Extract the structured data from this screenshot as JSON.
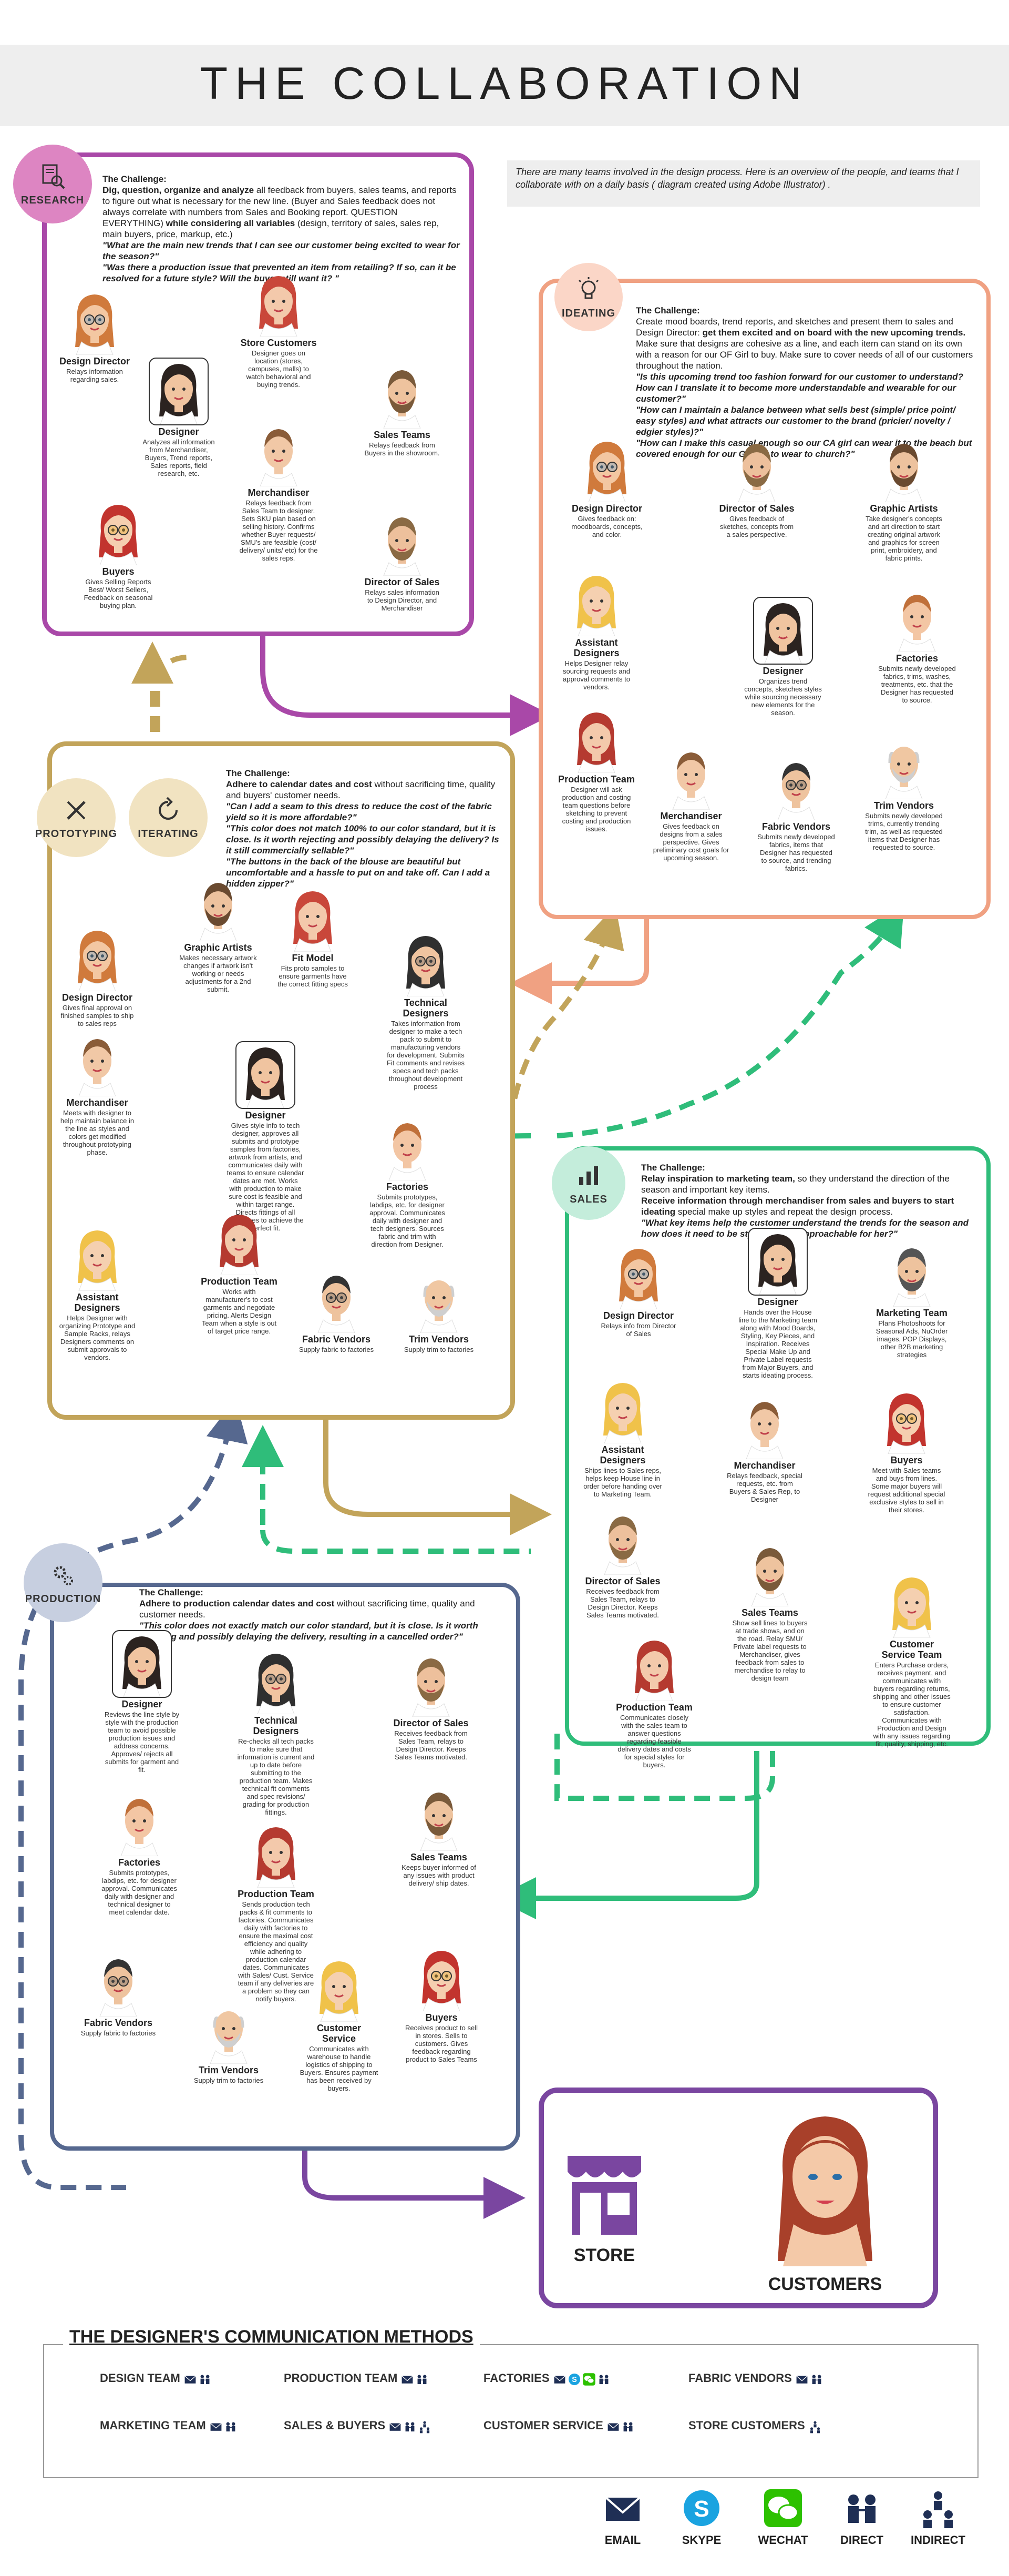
{
  "title": "THE COLLABORATION",
  "intro": "There are many teams involved in the design process. Here is an overview of the people, and teams that I collaborate with on a daily basis ( diagram created using Adobe Illustrator) .",
  "colors": {
    "research": "#a948a8",
    "ideating": "#f0a182",
    "prototyping": "#c2a45a",
    "sales": "#2fbd7a",
    "production": "#56688f",
    "destination": "#7a46a0"
  },
  "research": {
    "badge": "RESEARCH",
    "challenge_label": "The Challenge:",
    "challenge_lead": "Dig, question, organize and analyze",
    "challenge_text": " all feedback from buyers, sales teams, and reports to figure out what is necessary for the new line. (Buyer and Sales feedback does not always correlate with numbers from Sales and Booking report. QUESTION EVERYTHING) ",
    "challenge_tail": "while considering all variables",
    "challenge_text2": " (design, territory of sales, sales rep, main buyers, price, markup, etc.)",
    "q1": "\"What are the main new trends that I can see our customer being excited to wear for the season?\"",
    "q2": "\"Was there a production issue that prevented an item from retailing? If so, can it be resolved for a future style? Will the buyer still want it? \"",
    "people": [
      {
        "name": "Design Director",
        "desc": "Relays information regarding sales."
      },
      {
        "name": "Store Customers",
        "desc": "Designer goes on location (stores, campuses, malls) to watch behavioral and buying trends."
      },
      {
        "name": "Designer",
        "desc": "Analyzes all information from Merchandiser, Buyers, Trend reports, Sales reports, field research, etc."
      },
      {
        "name": "Sales Teams",
        "desc": "Relays feedback from Buyers in the showroom."
      },
      {
        "name": "Merchandiser",
        "desc": "Relays feedback from Sales Team to designer. Sets SKU plan based on selling history. Confirms whether Buyer requests/ SMU's are feasible (cost/ delivery/ units/ etc) for the sales reps."
      },
      {
        "name": "Buyers",
        "desc": "Gives Selling Reports Best/ Worst Sellers, Feedback on seasonal buying plan."
      },
      {
        "name": "Director of Sales",
        "desc": "Relays sales information to Design Director, and Merchandiser"
      }
    ]
  },
  "ideating": {
    "badge": "IDEATING",
    "challenge_label": "The Challenge:",
    "challenge_text": "Create mood boards, trend reports, and sketches and present them to sales and Design Director: ",
    "challenge_lead": "get them excited and on board with the new upcoming trends.",
    "challenge_text2": "Make sure that designs are cohesive as a line, and each item can stand on its own with a reason for our OF Girl to buy. Make sure to cover needs of all of our customers throughout the nation.",
    "q1": "\"Is this upcoming trend too fashion forward for our customer to understand? How can I translate it to become more understandable and wearable for our customer?\"",
    "q2": "\"How can I maintain a balance between what sells best (simple/ price point/ easy styles) and what attracts our customer to the brand (pricier/ novelty / edgier styles)?\"",
    "q3": "\"How can I make this casual enough so our CA girl can wear it to the beach but covered enough for our GA girl to wear to church?\"",
    "people": [
      {
        "name": "Design Director",
        "desc": "Gives feedback on: moodboards, concepts, and color."
      },
      {
        "name": "Director of Sales",
        "desc": "Gives feedback of sketches, concepts from a sales perspective."
      },
      {
        "name": "Graphic Artists",
        "desc": "Take designer's concepts and art direction to start creating original artwork and graphics for screen print, embroidery, and fabric prints."
      },
      {
        "name": "Assistant Designers",
        "desc": "Helps Designer relay sourcing requests and approval comments to vendors."
      },
      {
        "name": "Designer",
        "desc": "Organizes trend concepts, sketches styles while sourcing necessary new elements for the season."
      },
      {
        "name": "Factories",
        "desc": "Submits newly developed fabrics, trims, washes, treatments, etc. that the Designer has requested to source."
      },
      {
        "name": "Production Team",
        "desc": "Designer will ask production and costing team questions before sketching to prevent costing and production issues."
      },
      {
        "name": "Merchandiser",
        "desc": "Gives feedback on designs from a sales perspective. Gives preliminary cost goals for upcoming season."
      },
      {
        "name": "Fabric Vendors",
        "desc": "Submits newly developed fabrics, items that Designer has requested to source, and trending fabrics."
      },
      {
        "name": "Trim Vendors",
        "desc": "Submits newly developed trims, currently trending trim, as well as requested items that Designer has requested to source."
      }
    ]
  },
  "prototyping": {
    "badge1": "PROTOTYPING",
    "badge2": "ITERATING",
    "challenge_label": "The Challenge:",
    "challenge_lead": "Adhere to calendar dates and cost",
    "challenge_text": " without sacrificing time, quality and buyers' customer needs.",
    "q1": "\"Can I add a seam to this dress to reduce the cost of the fabric yield so it is more affordable?\"",
    "q2": "\"This color does not match 100% to our color standard, but it is close. Is it worth rejecting and possibly delaying the delivery? Is it still commercially sellable?\"",
    "q3": "\"The buttons in the back of the blouse are beautiful but uncomfortable and a hassle to put on and take off. Can I add a hidden zipper?\"",
    "people": [
      {
        "name": "Graphic Artists",
        "desc": "Makes necessary artwork changes if artwork isn't working or needs adjustments for a 2nd submit."
      },
      {
        "name": "Fit Model",
        "desc": "Fits proto samples to ensure garments have the correct fitting specs"
      },
      {
        "name": "Design Director",
        "desc": "Gives final approval on finished samples to ship to sales reps"
      },
      {
        "name": "Technical Designers",
        "desc": "Takes information from designer to make a tech pack to submit to manufacturing vendors for development. Submits Fit comments and revises specs and tech packs throughout development process"
      },
      {
        "name": "Merchandiser",
        "desc": "Meets with designer to help maintain balance in the line as styles and colors get modified throughout prototyping phase."
      },
      {
        "name": "Designer",
        "desc": "Gives style info to tech designer, approves all submits and prototype samples from factories, artwork from artists, and communicates daily with teams to ensure calendar dates are met. Works with production to make sure cost is feasible and within target range. Directs fittings of all prototypes to achieve the perfect fit."
      },
      {
        "name": "Factories",
        "desc": "Submits prototypes, labdips, etc. for designer approval. Communicates daily with designer and tech designers. Sources fabric and trim with direction from Designer."
      },
      {
        "name": "Assistant Designers",
        "desc": "Helps Designer with organizing Prototype and Sample Racks, relays Designers comments on submit approvals to vendors."
      },
      {
        "name": "Production Team",
        "desc": "Works with manufacturer's to cost garments and negotiate pricing. Alerts Design Team when a style is out of target price range."
      },
      {
        "name": "Fabric Vendors",
        "desc": "Supply fabric to factories"
      },
      {
        "name": "Trim Vendors",
        "desc": "Supply trim to factories"
      }
    ]
  },
  "sales": {
    "badge": "SALES",
    "challenge_label": "The Challenge:",
    "challenge_lead": "Relay inspiration to marketing team,",
    "challenge_text": " so they understand the direction of the season and important key items.",
    "challenge_lead2": "Receive information through merchandiser from sales and buyers to start ideating",
    "challenge_text2": " special make up styles and repeat the design process.",
    "q1": "\"What key items help the customer understand the trends for the season and how does it need to be styled so it is approachable for her?\"",
    "people": [
      {
        "name": "Designer",
        "desc": "Hands over the House line to the Marketing team along with Mood Boards, Styling, Key Pieces, and Inspiration. Receives Special Make Up and Private Label requests from Major Buyers, and starts ideating process."
      },
      {
        "name": "Design Director",
        "desc": "Relays info from Director of Sales"
      },
      {
        "name": "Marketing Team",
        "desc": "Plans Photoshoots for Seasonal Ads, NuOrder images, POP Displays, other B2B marketing strategies"
      },
      {
        "name": "Assistant Designers",
        "desc": "Ships lines to Sales reps, helps keep House line in order before handing over to Marketing Team."
      },
      {
        "name": "Merchandiser",
        "desc": "Relays feedback, special requests, etc. from Buyers & Sales Rep, to Designer"
      },
      {
        "name": "Buyers",
        "desc": "Meet with Sales teams and buys from lines. Some major buyers will request additional special exclusive styles to sell in their stores."
      },
      {
        "name": "Director of Sales",
        "desc": "Receives feedback from Sales Team, relays to Design Director. Keeps Sales Teams motivated."
      },
      {
        "name": "Sales Teams",
        "desc": "Show sell lines to buyers at trade shows, and on the road. Relay SMU/ Private label requests to Merchandiser, gives feedback from sales to merchandise to relay to design team"
      },
      {
        "name": "Customer Service Team",
        "desc": "Enters Purchase orders, receives payment, and communicates with buyers regarding returns, shipping and other issues to ensure customer satisfaction. Communicates with Production and Design with any issues regarding fit, quality, shipping, etc."
      },
      {
        "name": "Production Team",
        "desc": "Communicates closely with the sales team to answer questions regarding feasible delivery dates and costs for special styles for buyers."
      }
    ]
  },
  "production": {
    "badge": "PRODUCTION",
    "challenge_label": "The Challenge:",
    "challenge_lead": "Adhere to production calendar dates and cost",
    "challenge_text": " without sacrificing time, quality and customer needs.",
    "q1": "\"This color does not exactly match our color standard, but it is close. Is it worth rejecting and possibly delaying the delivery, resulting in a cancelled order?\"",
    "people": [
      {
        "name": "Designer",
        "desc": "Reviews the line style by style with the production team to avoid possible production issues and address concerns. Approves/ rejects all submits for garment and fit."
      },
      {
        "name": "Technical Designers",
        "desc": "Re-checks all tech packs to make sure that information is current and up to date before submitting to the production team. Makes technical fit comments and spec revisions/ grading for production fittings."
      },
      {
        "name": "Director of Sales",
        "desc": "Receives feedback from Sales Team, relays to Design Director. Keeps Sales Teams motivated."
      },
      {
        "name": "Factories",
        "desc": "Submits prototypes, labdips, etc. for designer approval. Communicates daily with designer and technical designer to meet calendar date."
      },
      {
        "name": "Production Team",
        "desc": "Sends production tech packs & fit comments to factories. Communicates daily with factories to ensure the maximal cost efficiency and quality while adhering to production calendar dates. Communicates with Sales/ Cust. Service team if any deliveries are a problem so they can notify buyers."
      },
      {
        "name": "Sales Teams",
        "desc": "Keeps buyer informed of any issues with product delivery/ ship dates."
      },
      {
        "name": "Fabric Vendors",
        "desc": "Supply fabric to factories"
      },
      {
        "name": "Trim Vendors",
        "desc": "Supply trim to factories"
      },
      {
        "name": "Customer Service",
        "desc": "Communicates with warehouse to handle logistics of shipping to Buyers. Ensures payment has been received by buyers."
      },
      {
        "name": "Buyers",
        "desc": "Receives product to sell in stores. Sells to customers. Gives feedback regarding product to Sales Teams"
      }
    ]
  },
  "destination": {
    "store": "STORE",
    "customers": "CUSTOMERS"
  },
  "legend": {
    "title": "THE DESIGNER'S COMMUNICATION METHODS",
    "rows": [
      {
        "label": "DESIGN TEAM",
        "icons": [
          "email-icon",
          "direct-icon"
        ]
      },
      {
        "label": "PRODUCTION TEAM",
        "icons": [
          "email-icon",
          "direct-icon"
        ]
      },
      {
        "label": "FACTORIES",
        "icons": [
          "email-icon",
          "skype-icon",
          "wechat-icon",
          "direct-icon"
        ]
      },
      {
        "label": "FABRIC VENDORS",
        "icons": [
          "email-icon",
          "direct-icon"
        ]
      },
      {
        "label": "MARKETING TEAM",
        "icons": [
          "email-icon",
          "direct-icon"
        ]
      },
      {
        "label": "SALES & BUYERS",
        "icons": [
          "email-icon",
          "direct-icon",
          "indirect-icon"
        ]
      },
      {
        "label": "CUSTOMER SERVICE",
        "icons": [
          "email-icon",
          "direct-icon"
        ]
      },
      {
        "label": "STORE CUSTOMERS",
        "icons": [
          "indirect-icon"
        ]
      }
    ],
    "methods": [
      {
        "label": "EMAIL",
        "icon": "email-icon"
      },
      {
        "label": "SKYPE",
        "icon": "skype-icon"
      },
      {
        "label": "WECHAT",
        "icon": "wechat-icon"
      },
      {
        "label": "DIRECT",
        "icon": "direct-icon"
      },
      {
        "label": "INDIRECT",
        "icon": "indirect-icon"
      }
    ]
  }
}
